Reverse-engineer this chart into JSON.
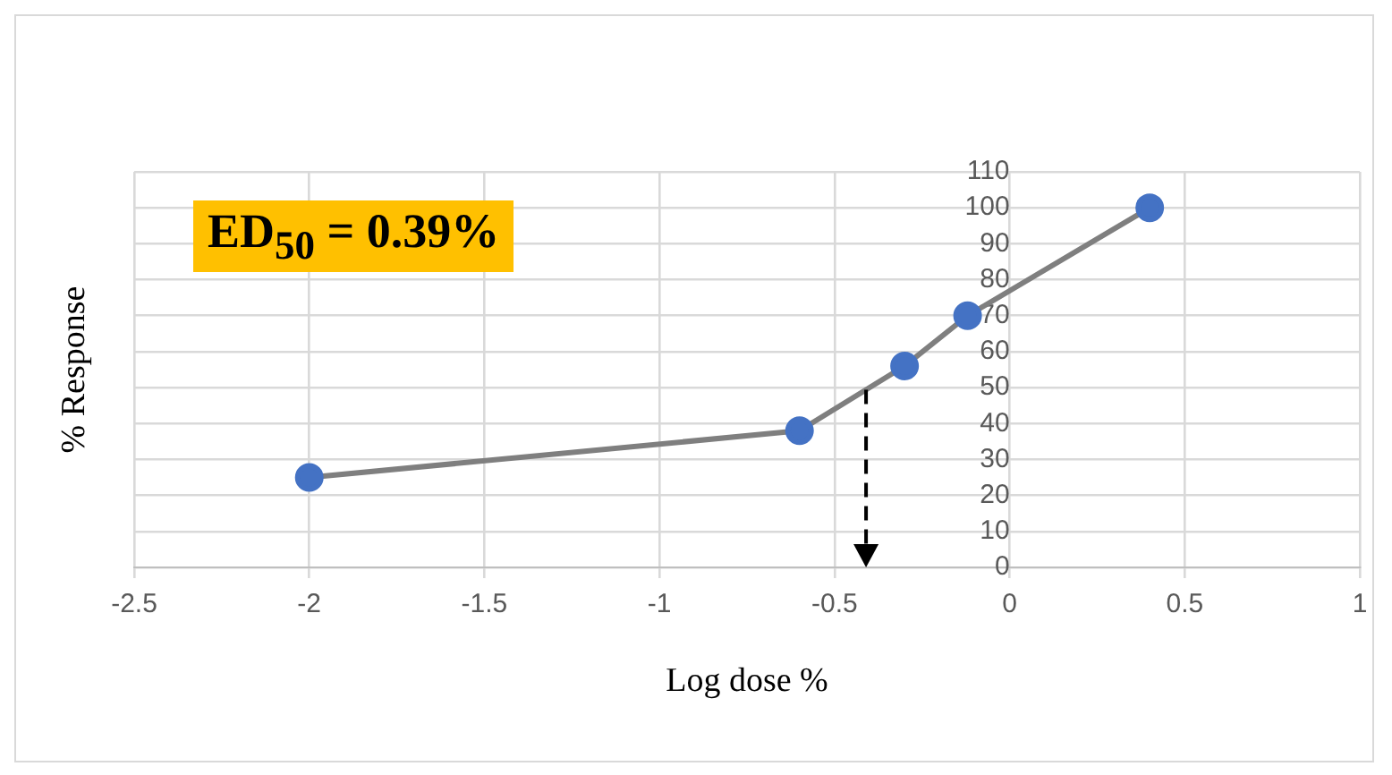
{
  "chart_data": {
    "type": "line",
    "xlabel": "Log dose %",
    "ylabel": "% Response",
    "x": [
      -2,
      -0.6,
      -0.3,
      -0.12,
      0.4
    ],
    "series": [
      {
        "color": "#4472c4",
        "values": [
          25,
          38,
          56,
          70,
          100
        ]
      }
    ],
    "xlim": [
      -2.5,
      1
    ],
    "xticks": [
      -2.5,
      -2,
      -1.5,
      -1,
      -0.5,
      0,
      0.5,
      1
    ],
    "ylim": [
      0,
      110
    ],
    "yticks": [
      0,
      10,
      20,
      30,
      40,
      50,
      60,
      70,
      80,
      90,
      100,
      110
    ],
    "grid": true,
    "legend": false,
    "marker": "circle",
    "line_style": "solid",
    "ref_lines": [
      {
        "axis": "x",
        "value": -0.41,
        "color": "#000000",
        "line_style": "dashed"
      }
    ],
    "annotations": [
      "ED$_{50}$ = 0.39%"
    ]
  }
}
